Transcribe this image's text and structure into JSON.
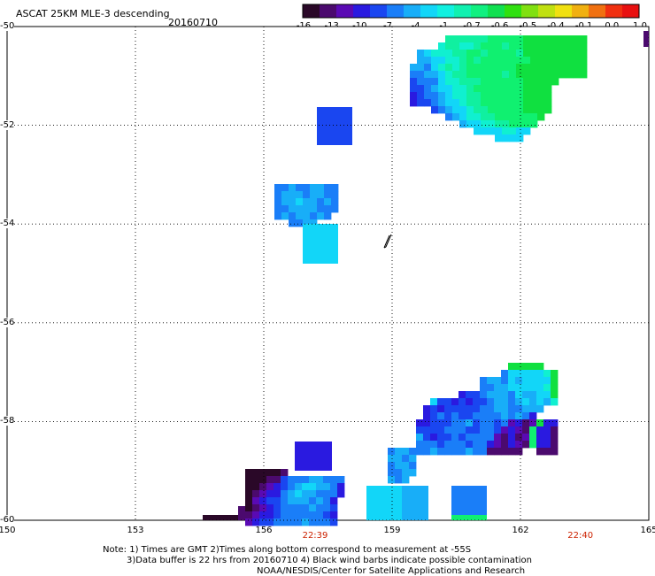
{
  "header": {
    "title": "ASCAT 25KM MLE-3 descending",
    "date": "20160710"
  },
  "colorbar": {
    "colors": [
      "#2a0828",
      "#4b0a6e",
      "#5a0ab4",
      "#2a1ae0",
      "#1a46f0",
      "#1a7ef8",
      "#18aef8",
      "#12d6f8",
      "#10f0e0",
      "#10f0b0",
      "#10f080",
      "#10e050",
      "#30e010",
      "#80e010",
      "#c0e010",
      "#f0e010",
      "#f0b010",
      "#f07010",
      "#f03010",
      "#e81010"
    ],
    "labels": [
      "-16",
      "-13",
      "-10",
      "-7",
      "-4",
      "-1",
      "-0.7",
      "-0.6",
      "-0.5",
      "-0.4",
      "-0.1",
      "0.0",
      "1.0"
    ]
  },
  "axes": {
    "y_labels": [
      {
        "v": -50,
        "t": "-50"
      },
      {
        "v": -52,
        "t": "-52"
      },
      {
        "v": -54,
        "t": "-54"
      },
      {
        "v": -56,
        "t": "-56"
      },
      {
        "v": -58,
        "t": "-58"
      },
      {
        "v": -60,
        "t": "-60"
      }
    ],
    "x_labels": [
      {
        "v": 150,
        "t": "150"
      },
      {
        "v": 153,
        "t": "153"
      },
      {
        "v": 156,
        "t": "156"
      },
      {
        "v": 159,
        "t": "159"
      },
      {
        "v": 162,
        "t": "162"
      },
      {
        "v": 165,
        "t": "165"
      }
    ]
  },
  "times": [
    {
      "lon": 157.2,
      "t": "22:39"
    },
    {
      "lon": 163.4,
      "t": "22:40"
    }
  ],
  "notes": {
    "line1": "Note: 1) Times are GMT 2)Times along bottom correspond to measurement at -55S",
    "line2": "3)Data buffer is 22 hrs from 20160710 4) Black wind barbs indicate possible contamination",
    "line3": "NOAA/NESDIS/Center for Satellite Applications and Research"
  }
}
